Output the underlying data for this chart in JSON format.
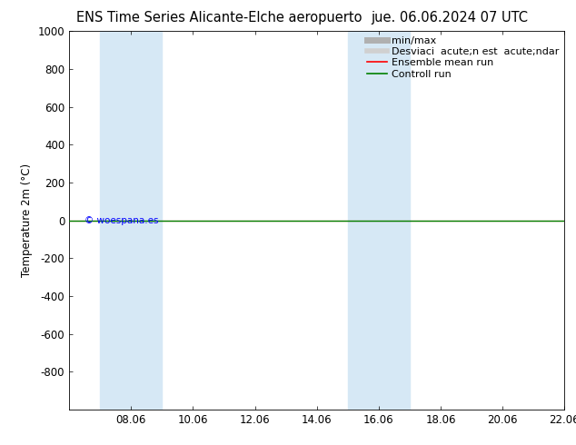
{
  "title_left": "ENS Time Series Alicante-Elche aeropuerto",
  "title_right": "jue. 06.06.2024 07 UTC",
  "ylabel": "Temperature 2m (°C)",
  "ylim_top": -1000,
  "ylim_bottom": 1000,
  "yticks": [
    -800,
    -600,
    -400,
    -200,
    0,
    200,
    400,
    600,
    800,
    1000
  ],
  "xtick_labels": [
    "08.06",
    "10.06",
    "12.06",
    "14.06",
    "16.06",
    "18.06",
    "20.06",
    "22.06"
  ],
  "xtick_positions": [
    2,
    4,
    6,
    8,
    10,
    12,
    14,
    16
  ],
  "xlim": [
    0,
    16
  ],
  "shaded_bands": [
    {
      "x_start": 1.0,
      "x_end": 3.0
    },
    {
      "x_start": 9.0,
      "x_end": 11.0
    }
  ],
  "shaded_color": "#d6e8f5",
  "green_line_y": 0,
  "copyright_text": "© woespana.es",
  "legend_label_minmax": "min/max",
  "legend_label_std": "Desviaci  acute;n est  acute;ndar",
  "legend_label_ens": "Ensemble mean run",
  "legend_label_ctrl": "Controll run",
  "bg_color": "#ffffff",
  "title_fontsize": 10.5,
  "axis_fontsize": 8.5,
  "legend_fontsize": 8
}
